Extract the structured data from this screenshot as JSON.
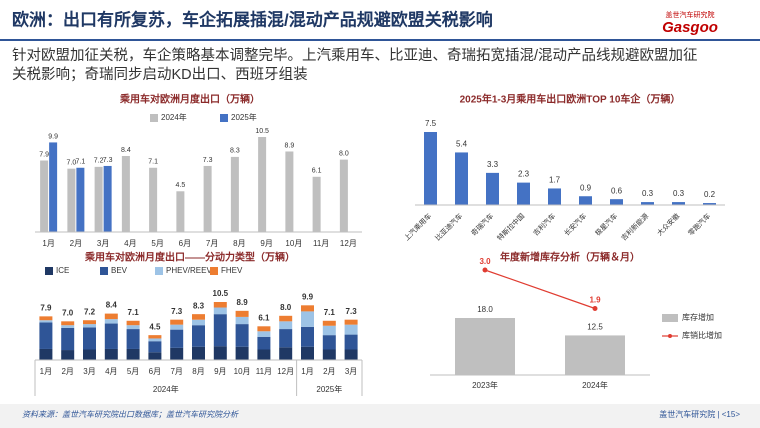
{
  "header": {
    "title": "欧洲：出口有所复苏，车企拓展插混/混动产品规避欧盟关税影响",
    "logo": "盖世汽车研究院",
    "brand": "Gasgoo"
  },
  "summary": [
    "针对欧盟加征关税，车企策略基本调整完毕。上汽乘用车、比亚迪、奇瑞拓宽插混/混动产品线规避欧盟加征",
    "关税影响；奇瑞同步启动KD出口、西班牙组装"
  ],
  "chart_data": [
    {
      "type": "bar",
      "title": "乘用车对欧洲月度出口（万辆）",
      "categories": [
        "1月",
        "2月",
        "3月",
        "4月",
        "5月",
        "6月",
        "7月",
        "8月",
        "9月",
        "10月",
        "11月",
        "12月"
      ],
      "series": [
        {
          "name": "2024年",
          "color": "#bfbfbf",
          "values": [
            7.9,
            7,
            7.2,
            8.4,
            7.1,
            4.5,
            7.3,
            8.3,
            10.5,
            8.9,
            6.1,
            8
          ],
          "value_labels": [
            "7.9",
            "7.0",
            "7.2",
            "8.4",
            "7.1",
            "4.5",
            "7.3",
            "8.3",
            "10.5",
            "8.9",
            "6.1",
            "8.0"
          ]
        },
        {
          "name": "2025年",
          "color": "#4472c4",
          "values": [
            9.9,
            7.1,
            7.3,
            null,
            null,
            null,
            null,
            null,
            null,
            null,
            null,
            null
          ]
        }
      ]
    },
    {
      "type": "bar",
      "title": "2025年1-3月乘用车出口欧洲TOP 10车企（万辆）",
      "categories": [
        "上汽乘用车",
        "比亚迪汽车",
        "奇瑞汽车",
        "特斯拉中国",
        "吉利汽车",
        "长安汽车",
        "极星汽车",
        "吉利新能源",
        "大众安徽",
        "零跑汽车"
      ],
      "color": "#4472c4",
      "values": [
        7.5,
        5.4,
        3.3,
        2.3,
        1.7,
        0.9,
        0.6,
        0.3,
        0.3,
        0.2
      ]
    },
    {
      "type": "stacked_bar",
      "title": "乘用车对欧洲月度出口——分动力类型（万辆）",
      "categories": [
        "1月",
        "2月",
        "3月",
        "4月",
        "5月",
        "6月",
        "7月",
        "8月",
        "9月",
        "10月",
        "11月",
        "12月",
        "1月",
        "2月",
        "3月"
      ],
      "groups": [
        "2024年",
        "2025年"
      ],
      "series": [
        {
          "name": "ICE",
          "color": "#1f3864",
          "values": [
            2.0,
            1.8,
            1.9,
            2.0,
            2.0,
            1.4,
            2.2,
            2.4,
            2.5,
            2.4,
            1.9,
            2.3,
            2.4,
            1.9,
            1.9
          ]
        },
        {
          "name": "BEV",
          "color": "#2f5597",
          "values": [
            4.8,
            4.0,
            4.0,
            4.6,
            3.6,
            2.0,
            3.3,
            3.9,
            5.8,
            4.1,
            2.3,
            3.3,
            3.6,
            2.6,
            2.7
          ]
        },
        {
          "name": "PHEV/REEV",
          "color": "#9dc3e6",
          "values": [
            0.4,
            0.5,
            0.6,
            0.8,
            0.7,
            0.5,
            0.9,
            1.0,
            1.2,
            1.3,
            1.0,
            1.4,
            2.8,
            1.7,
            1.8
          ]
        },
        {
          "name": "FHEV",
          "color": "#ed7d31",
          "values": [
            0.7,
            0.7,
            0.7,
            1.0,
            0.8,
            0.6,
            0.9,
            1.0,
            1.0,
            1.1,
            0.9,
            1.0,
            1.1,
            0.9,
            0.9
          ]
        }
      ],
      "total_labels": [
        "7.9",
        "7.0",
        "7.2",
        "8.4",
        "7.1",
        "4.5",
        "7.3",
        "8.3",
        "10.5",
        "8.9",
        "6.1",
        "8.0",
        "9.9",
        "7.1",
        "7.3"
      ]
    },
    {
      "type": "combo",
      "title": "年度新增库存分析（万辆＆月）",
      "categories": [
        "2023年",
        "2024年"
      ],
      "series": [
        {
          "name": "库存增加",
          "color": "#bfbfbf",
          "values": [
            18,
            12.5
          ],
          "value_labels": [
            "18.0",
            "12.5"
          ]
        },
        {
          "name": "库销比增加",
          "color": "#e03c31",
          "values": [
            3,
            1.9
          ],
          "value_labels": [
            "3.0",
            "1.9"
          ]
        }
      ]
    }
  ],
  "footer": {
    "source": "资料来源：盖世汽车研究院出口数据库；盖世汽车研究院分析",
    "page": "盖世汽车研究院 | <15>"
  }
}
